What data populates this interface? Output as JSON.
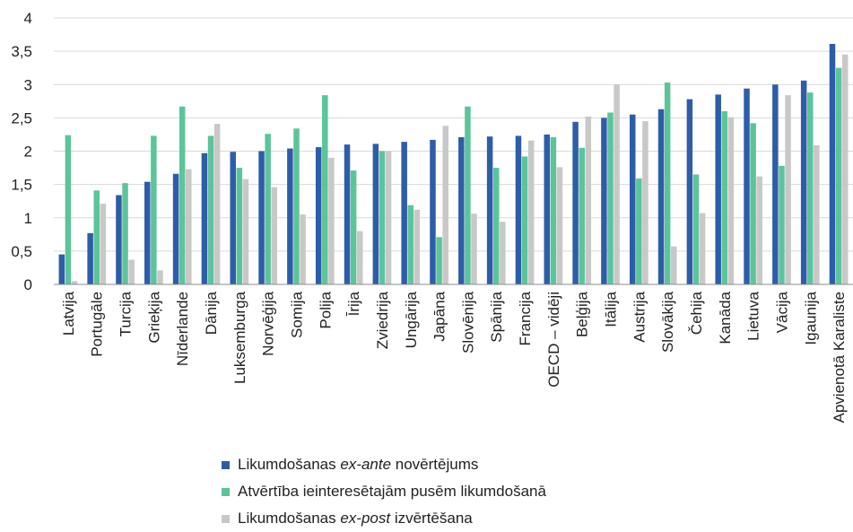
{
  "chart_data": {
    "type": "bar",
    "ylim": [
      0,
      4
    ],
    "yticks": [
      "0",
      "0,5",
      "1",
      "1,5",
      "2",
      "2,5",
      "3",
      "3,5",
      "4"
    ],
    "grid": true,
    "legend_position": "bottom",
    "categories": [
      "Latvija",
      "Portugāle",
      "Turcija",
      "Grieķija",
      "Nīderlande",
      "Dānija",
      "Luksemburga",
      "Norvēģija",
      "Somija",
      "Polija",
      "Īrija",
      "Zviedrija",
      "Ungārija",
      "Japāna",
      "Slovēnija",
      "Spānija",
      "Francija",
      "OECD – vidēji",
      "Beļģija",
      "Itālija",
      "Austrija",
      "Slovākija",
      "Čehija",
      "Kanāda",
      "Lietuva",
      "Vācija",
      "Igaunija",
      "Apvienotā Karaliste"
    ],
    "series": [
      {
        "name": "Likumdošanas ex-ante novērtējums",
        "name_parts": [
          "Likumdošanas ",
          "ex-ante",
          " novērtējums"
        ],
        "color": "#2e5da8",
        "values": [
          0.45,
          0.77,
          1.34,
          1.54,
          1.66,
          1.97,
          1.99,
          2.0,
          2.04,
          2.06,
          2.1,
          2.11,
          2.14,
          2.17,
          2.21,
          2.22,
          2.23,
          2.25,
          2.44,
          2.5,
          2.55,
          2.63,
          2.78,
          2.85,
          2.94,
          3.0,
          3.06,
          3.61
        ]
      },
      {
        "name": "Atvērtība ieinteresētajām pusēm likumdošanā",
        "name_parts": [
          "Atvērtība ieinteresētajām pusēm likumdošanā"
        ],
        "color": "#5cc49a",
        "values": [
          2.24,
          1.41,
          1.52,
          2.23,
          2.67,
          2.23,
          1.75,
          2.26,
          2.34,
          2.84,
          1.71,
          2.0,
          1.19,
          0.71,
          2.67,
          1.75,
          1.92,
          2.21,
          2.05,
          2.58,
          1.59,
          3.03,
          1.65,
          2.6,
          2.42,
          1.78,
          2.88,
          3.25
        ]
      },
      {
        "name": "Likumdošanas ex-post izvērtēšana",
        "name_parts": [
          "Likumdošanas ",
          "ex-post",
          " izvērtēšana"
        ],
        "color": "#c8c8c8",
        "values": [
          0.05,
          1.21,
          0.37,
          0.21,
          1.73,
          2.41,
          1.58,
          1.46,
          1.05,
          1.9,
          0.8,
          2.0,
          1.12,
          2.38,
          1.06,
          0.94,
          2.16,
          1.76,
          2.52,
          3.0,
          2.45,
          0.57,
          1.07,
          2.51,
          1.62,
          2.84,
          2.09,
          3.45
        ]
      }
    ]
  }
}
